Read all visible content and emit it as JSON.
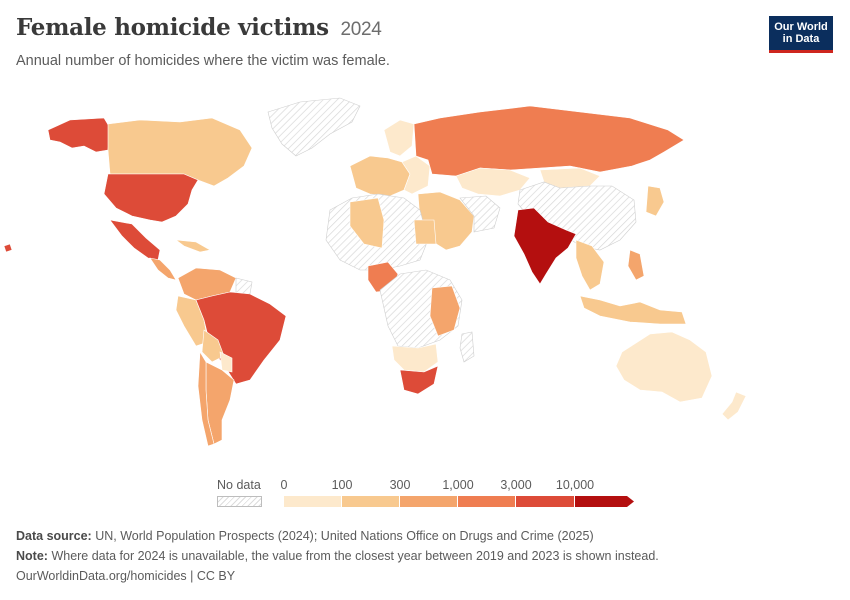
{
  "header": {
    "title": "Female homicide victims",
    "year": "2024",
    "subtitle": "Annual number of homicides where the victim was female."
  },
  "logo": {
    "line1": "Our World",
    "line2": "in Data"
  },
  "legend": {
    "no_data_label": "No data",
    "ticks": [
      "0",
      "100",
      "300",
      "1,000",
      "3,000",
      "10,000"
    ],
    "bins": [
      {
        "from": "0",
        "to": "100",
        "color": "#fde9cc"
      },
      {
        "from": "100",
        "to": "300",
        "color": "#f8c98f"
      },
      {
        "from": "300",
        "to": "1,000",
        "color": "#f4a56c"
      },
      {
        "from": "1,000",
        "to": "3,000",
        "color": "#ef7d51"
      },
      {
        "from": "3,000",
        "to": "10,000",
        "color": "#dd4b38"
      },
      {
        "from": "10,000",
        "to": "",
        "color": "#b40f0f"
      }
    ]
  },
  "map_data": {
    "colors": {
      "no_data": "#e6e6e6",
      "bin_0_100": "#fde9cc",
      "bin_100_300": "#f8c98f",
      "bin_300_1000": "#f4a56c",
      "bin_1000_3000": "#ef7d51",
      "bin_3000_10000": "#dd4b38",
      "bin_10000_plus": "#b40f0f"
    },
    "regions": [
      {
        "name": "Alaska (United States)",
        "bin": "3,000–10,000"
      },
      {
        "name": "Canada",
        "bin": "100–300"
      },
      {
        "name": "United States",
        "bin": "3,000–10,000"
      },
      {
        "name": "Mexico",
        "bin": "3,000–10,000"
      },
      {
        "name": "Greenland",
        "bin": "No data"
      },
      {
        "name": "Brazil",
        "bin": "3,000–10,000"
      },
      {
        "name": "Colombia",
        "bin": "300–1,000"
      },
      {
        "name": "Argentina",
        "bin": "300–1,000"
      },
      {
        "name": "Russia",
        "bin": "1,000–3,000"
      },
      {
        "name": "China",
        "bin": "No data"
      },
      {
        "name": "India",
        "bin": "10,000+"
      },
      {
        "name": "Nigeria",
        "bin": "1,000–3,000"
      },
      {
        "name": "South Africa",
        "bin": "3,000–10,000"
      },
      {
        "name": "Australia",
        "bin": "0–100"
      },
      {
        "name": "Algeria",
        "bin": "100–300"
      },
      {
        "name": "Egypt",
        "bin": "100–300"
      },
      {
        "name": "Tanzania",
        "bin": "300–1,000"
      },
      {
        "name": "Indonesia",
        "bin": "100–300"
      }
    ]
  },
  "footer": {
    "source_label": "Data source:",
    "source_text": "UN, World Population Prospects (2024); United Nations Office on Drugs and Crime (2025)",
    "note_label": "Note:",
    "note_text": "Where data for 2024 is unavailable, the value from the closest year between 2019 and 2023 is shown instead.",
    "credit": "OurWorldinData.org/homicides | CC BY"
  }
}
